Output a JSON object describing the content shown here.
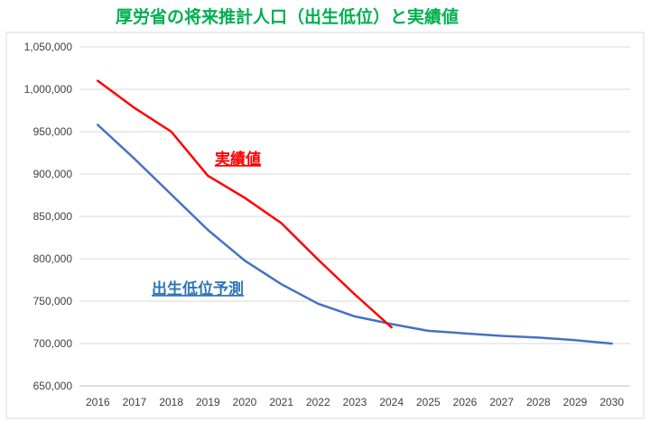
{
  "chart_data": {
    "type": "line",
    "title": "厚労省の将来推計人口（出生低位）と実績値",
    "xlabel": "",
    "ylabel": "",
    "categories": [
      "2016",
      "2017",
      "2018",
      "2019",
      "2020",
      "2021",
      "2022",
      "2023",
      "2024",
      "2025",
      "2026",
      "2027",
      "2028",
      "2029",
      "2030"
    ],
    "ylim": [
      650000,
      1050000
    ],
    "yticks": [
      "650,000",
      "700,000",
      "750,000",
      "800,000",
      "850,000",
      "900,000",
      "950,000",
      "1,000,000",
      "1,050,000"
    ],
    "grid": true,
    "series": [
      {
        "name": "実績値",
        "color": "#ff0000",
        "values": [
          1010000,
          978000,
          950000,
          898000,
          872000,
          842000,
          799000,
          758000,
          719000,
          null,
          null,
          null,
          null,
          null,
          null
        ]
      },
      {
        "name": "出生低位予測",
        "color": "#4472c4",
        "values": [
          958000,
          918000,
          876000,
          834000,
          798000,
          770000,
          747000,
          732000,
          723000,
          715000,
          712000,
          709000,
          707000,
          704000,
          700000
        ]
      }
    ],
    "colors": {
      "title": "#00b050",
      "grid": "#d9d9d9",
      "axis": "#bfbfbf",
      "border": "#d9d9d9"
    }
  }
}
